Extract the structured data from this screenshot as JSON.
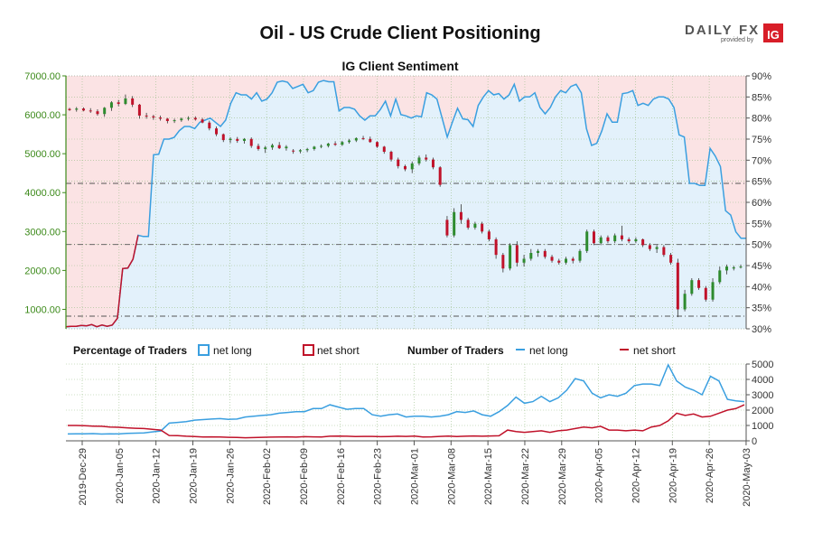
{
  "title": "Oil - US Crude Client Positioning",
  "subtitle": "IG Client Sentiment",
  "logo": {
    "daily": "DAILY",
    "fx": "FX",
    "provided_by": "provided by",
    "ig": "IG"
  },
  "legend": {
    "pct_heading": "Percentage of Traders",
    "pct_long": "net long",
    "pct_short": "net short",
    "num_heading": "Number of Traders",
    "num_long": "net long",
    "num_short": "net short"
  },
  "colors": {
    "long": "#3a9fe0",
    "short": "#c0122a",
    "long_fill": "#e3f1fb",
    "short_fill": "#fbe3e4",
    "price_axis": "#3c8a1a",
    "candle_up": "#2e8b2e",
    "candle_down": "#c0122a"
  },
  "chart_data": [
    {
      "type": "candlestick",
      "name": "price",
      "y_ticks": [
        "1000.00",
        "2000.00",
        "3000.00",
        "4000.00",
        "5000.00",
        "6000.00",
        "7000.00"
      ],
      "ylim": [
        500,
        7000
      ],
      "ohlc": [
        [
          6150,
          6180,
          6100,
          6120
        ],
        [
          6130,
          6200,
          6080,
          6160
        ],
        [
          6160,
          6190,
          6090,
          6110
        ],
        [
          6110,
          6170,
          6050,
          6090
        ],
        [
          6090,
          6140,
          5980,
          6020
        ],
        [
          6020,
          6200,
          5950,
          6180
        ],
        [
          6180,
          6350,
          6100,
          6320
        ],
        [
          6320,
          6380,
          6220,
          6280
        ],
        [
          6280,
          6520,
          6250,
          6420
        ],
        [
          6420,
          6480,
          6200,
          6260
        ],
        [
          6260,
          6280,
          5900,
          5980
        ],
        [
          5980,
          6050,
          5900,
          5960
        ],
        [
          5960,
          6000,
          5870,
          5930
        ],
        [
          5930,
          5980,
          5850,
          5900
        ],
        [
          5900,
          5920,
          5780,
          5840
        ],
        [
          5840,
          5900,
          5790,
          5860
        ],
        [
          5860,
          5930,
          5820,
          5900
        ],
        [
          5900,
          5960,
          5850,
          5920
        ],
        [
          5920,
          5960,
          5850,
          5880
        ],
        [
          5880,
          5920,
          5780,
          5800
        ],
        [
          5800,
          5850,
          5600,
          5650
        ],
        [
          5650,
          5700,
          5450,
          5500
        ],
        [
          5500,
          5520,
          5300,
          5350
        ],
        [
          5350,
          5420,
          5270,
          5380
        ],
        [
          5380,
          5430,
          5280,
          5330
        ],
        [
          5330,
          5400,
          5260,
          5380
        ],
        [
          5380,
          5420,
          5150,
          5200
        ],
        [
          5200,
          5260,
          5080,
          5120
        ],
        [
          5120,
          5200,
          5020,
          5160
        ],
        [
          5160,
          5260,
          5100,
          5220
        ],
        [
          5220,
          5300,
          5120,
          5140
        ],
        [
          5140,
          5220,
          5080,
          5180
        ],
        [
          5080,
          5120,
          5000,
          5060
        ],
        [
          5060,
          5120,
          5010,
          5090
        ],
        [
          5090,
          5150,
          5040,
          5120
        ],
        [
          5120,
          5200,
          5080,
          5180
        ],
        [
          5180,
          5240,
          5140,
          5200
        ],
        [
          5200,
          5280,
          5160,
          5260
        ],
        [
          5260,
          5320,
          5200,
          5230
        ],
        [
          5230,
          5330,
          5200,
          5300
        ],
        [
          5300,
          5380,
          5260,
          5340
        ],
        [
          5340,
          5420,
          5300,
          5400
        ],
        [
          5400,
          5460,
          5350,
          5380
        ],
        [
          5380,
          5440,
          5280,
          5300
        ],
        [
          5300,
          5320,
          5150,
          5180
        ],
        [
          5180,
          5200,
          5000,
          5050
        ],
        [
          5050,
          5080,
          4800,
          4850
        ],
        [
          4850,
          4900,
          4620,
          4680
        ],
        [
          4680,
          4720,
          4550,
          4600
        ],
        [
          4600,
          4800,
          4500,
          4750
        ],
        [
          4750,
          4950,
          4700,
          4900
        ],
        [
          4900,
          4980,
          4800,
          4850
        ],
        [
          4850,
          4900,
          4600,
          4650
        ],
        [
          4650,
          4680,
          4150,
          4200
        ],
        [
          3300,
          3400,
          2850,
          2900
        ],
        [
          2900,
          3600,
          2850,
          3500
        ],
        [
          3500,
          3700,
          3200,
          3300
        ],
        [
          3300,
          3350,
          3050,
          3100
        ],
        [
          3100,
          3250,
          3050,
          3200
        ],
        [
          3200,
          3250,
          2950,
          3000
        ],
        [
          3000,
          3050,
          2750,
          2800
        ],
        [
          2800,
          2850,
          2300,
          2400
        ],
        [
          2400,
          2450,
          1950,
          2050
        ],
        [
          2050,
          2700,
          2000,
          2650
        ],
        [
          2650,
          2750,
          2100,
          2200
        ],
        [
          2200,
          2400,
          2100,
          2300
        ],
        [
          2300,
          2550,
          2250,
          2450
        ],
        [
          2450,
          2550,
          2350,
          2500
        ],
        [
          2500,
          2550,
          2300,
          2350
        ],
        [
          2350,
          2400,
          2200,
          2250
        ],
        [
          2250,
          2300,
          2150,
          2200
        ],
        [
          2200,
          2350,
          2150,
          2300
        ],
        [
          2300,
          2350,
          2180,
          2250
        ],
        [
          2250,
          2550,
          2200,
          2500
        ],
        [
          2500,
          3050,
          2450,
          3000
        ],
        [
          3000,
          3050,
          2650,
          2700
        ],
        [
          2700,
          2900,
          2650,
          2850
        ],
        [
          2850,
          2900,
          2700,
          2750
        ],
        [
          2750,
          2950,
          2700,
          2900
        ],
        [
          2900,
          3150,
          2750,
          2800
        ],
        [
          2800,
          2850,
          2700,
          2750
        ],
        [
          2750,
          2850,
          2700,
          2800
        ],
        [
          2800,
          2820,
          2600,
          2650
        ],
        [
          2650,
          2700,
          2500,
          2550
        ],
        [
          2550,
          2650,
          2450,
          2600
        ],
        [
          2600,
          2650,
          2350,
          2400
        ],
        [
          2400,
          2450,
          2150,
          2200
        ],
        [
          2200,
          2300,
          800,
          1000
        ],
        [
          1000,
          1500,
          950,
          1400
        ],
        [
          1400,
          1800,
          1350,
          1750
        ],
        [
          1750,
          1800,
          1500,
          1550
        ],
        [
          1550,
          1600,
          1200,
          1250
        ],
        [
          1250,
          1800,
          1200,
          1700
        ],
        [
          1700,
          2100,
          1650,
          2000
        ],
        [
          2000,
          2150,
          1900,
          2100
        ],
        [
          2050,
          2120,
          2000,
          2080
        ],
        [
          2080,
          2150,
          2050,
          2100
        ]
      ]
    },
    {
      "type": "line",
      "name": "sentiment",
      "y_ticks": [
        "30%",
        "35%",
        "40%",
        "45%",
        "50%",
        "55%",
        "60%",
        "65%",
        "70%",
        "75%",
        "80%",
        "85%",
        "90%"
      ],
      "ylim": [
        30,
        90
      ],
      "series": [
        {
          "values": [
            30.5,
            30.6,
            30.6,
            30.8,
            30.7,
            31.0,
            30.5,
            30.9,
            30.6,
            30.9,
            32.5,
            44.3,
            44.4,
            46.5,
            52.2,
            51.9,
            51.9,
            71.3,
            71.4,
            75.0,
            75.0,
            75.4,
            77.0,
            78.0,
            78.0,
            77.5,
            79.0,
            79.5,
            80.0,
            79.0,
            78.0,
            79.5,
            83.5,
            86.0,
            85.5,
            85.5,
            84.5,
            86.0,
            84.0,
            84.5,
            86.0,
            88.5,
            88.8,
            88.5,
            87.0,
            87.5,
            88.0,
            86.0,
            86.5,
            88.5,
            88.9,
            88.6,
            88.6,
            81.7,
            82.5,
            82.5,
            82.1,
            80.5,
            79.5,
            80.5,
            80.5,
            82.0,
            84.0,
            80.5,
            84.5,
            80.8,
            80.5,
            80.0,
            80.5,
            80.3,
            86.0,
            85.5,
            84.5,
            80.0,
            75.5,
            79.0,
            82.3,
            79.8,
            79.6,
            78.0,
            83.0,
            85.0,
            86.5,
            85.5,
            85.8,
            84.5,
            85.5,
            88.0,
            84.0,
            85.0,
            85.0,
            86.0,
            82.5,
            81.0,
            82.5,
            85.0,
            86.5,
            86.0,
            87.5,
            88.0,
            86.0,
            77.5,
            73.5,
            74.0,
            77.0,
            81.0,
            79.0,
            79.0,
            85.8,
            86.0,
            86.5,
            83.0,
            83.5,
            83.0,
            84.5,
            85.0,
            85.0,
            84.5,
            82.5,
            76.0,
            75.5,
            64.5,
            64.5,
            64.0,
            64.0,
            72.8,
            71.0,
            68.5,
            58.0,
            57.0,
            53.0,
            51.5,
            51.5
          ]
        }
      ],
      "reference_lines": [
        64.5,
        50.0,
        33.0
      ]
    },
    {
      "type": "line",
      "name": "traders",
      "y_ticks": [
        "0",
        "1000",
        "2000",
        "3000",
        "4000",
        "5000"
      ],
      "ylim": [
        0,
        5000
      ],
      "x_ticks": [
        "2019-Dec-29",
        "2020-Jan-05",
        "2020-Jan-12",
        "2020-Jan-19",
        "2020-Jan-26",
        "2020-Feb-02",
        "2020-Feb-09",
        "2020-Feb-16",
        "2020-Feb-23",
        "2020-Mar-01",
        "2020-Mar-08",
        "2020-Mar-15",
        "2020-Mar-22",
        "2020-Mar-29",
        "2020-Apr-05",
        "2020-Apr-12",
        "2020-Apr-19",
        "2020-Apr-26",
        "2020-May-03"
      ],
      "series": [
        {
          "name": "net long",
          "values": [
            450,
            460,
            455,
            470,
            440,
            460,
            450,
            480,
            500,
            520,
            580,
            640,
            1150,
            1200,
            1250,
            1350,
            1380,
            1420,
            1450,
            1400,
            1420,
            1550,
            1600,
            1650,
            1700,
            1800,
            1850,
            1900,
            1900,
            2100,
            2100,
            2350,
            2200,
            2050,
            2100,
            2100,
            1700,
            1600,
            1700,
            1750,
            1550,
            1600,
            1600,
            1550,
            1600,
            1700,
            1900,
            1850,
            1950,
            1700,
            1600,
            1900,
            2300,
            2850,
            2450,
            2550,
            2900,
            2550,
            2800,
            3300,
            4050,
            3900,
            3100,
            2800,
            3000,
            2900,
            3100,
            3600,
            3700,
            3700,
            3600,
            4950,
            3900,
            3500,
            3300,
            3000,
            4200,
            3900,
            2700,
            2600,
            2550
          ]
        },
        {
          "name": "net short",
          "values": [
            1000,
            1000,
            980,
            960,
            950,
            900,
            880,
            850,
            820,
            800,
            750,
            700,
            350,
            340,
            300,
            280,
            250,
            260,
            250,
            230,
            220,
            200,
            210,
            230,
            240,
            250,
            260,
            240,
            270,
            260,
            250,
            300,
            310,
            300,
            280,
            290,
            290,
            270,
            280,
            300,
            290,
            310,
            250,
            260,
            290,
            310,
            280,
            300,
            320,
            300,
            320,
            330,
            700,
            600,
            550,
            600,
            650,
            550,
            650,
            700,
            800,
            900,
            850,
            950,
            700,
            700,
            650,
            700,
            650,
            900,
            1000,
            1300,
            1800,
            1650,
            1750,
            1550,
            1600,
            1800,
            2000,
            2100,
            2350
          ]
        }
      ]
    }
  ]
}
